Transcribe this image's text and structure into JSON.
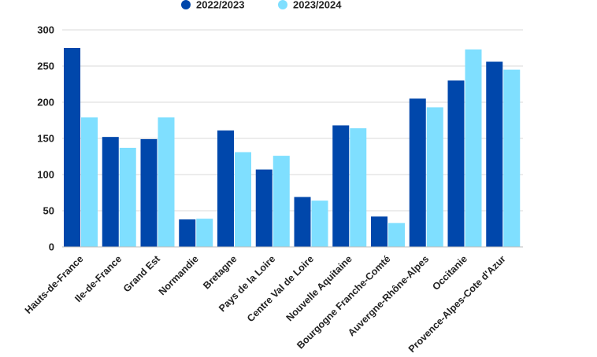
{
  "chart_data": {
    "type": "bar",
    "title": "",
    "xlabel": "",
    "ylabel": "",
    "ylim": [
      0,
      300
    ],
    "yticks": [
      0,
      50,
      100,
      150,
      200,
      250,
      300
    ],
    "grid": true,
    "legend_position": "top-center",
    "categories": [
      "Hauts-de-France",
      "Ile-de-France",
      "Grand Est",
      "Normandie",
      "Bretagne",
      "Pays de la Loire",
      "Centre Val de Loire",
      "Nouvelle Aquitaine",
      "Bourgogne Franche-Comté",
      "Auvergne-Rhône-Alpes",
      "Occitanie",
      "Provence-Alpes-Cote d'Azur"
    ],
    "series": [
      {
        "name": "2022/2023",
        "color": "#0047AB",
        "values": [
          275,
          152,
          149,
          38,
          161,
          107,
          69,
          168,
          42,
          205,
          230,
          256
        ]
      },
      {
        "name": "2023/2024",
        "color": "#7FDFFF",
        "values": [
          179,
          137,
          179,
          39,
          131,
          126,
          64,
          164,
          33,
          193,
          273,
          245
        ]
      }
    ]
  }
}
